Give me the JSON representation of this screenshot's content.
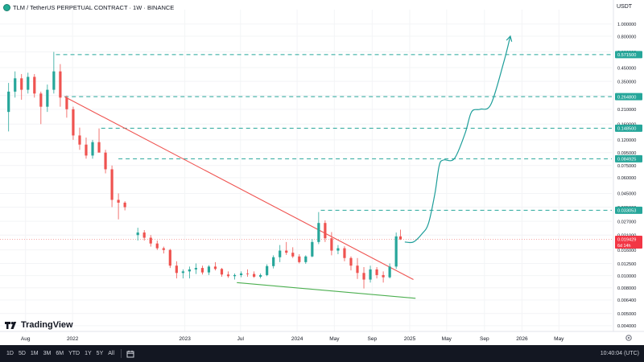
{
  "header": {
    "title": "TLM / TetherUS PERPETUAL CONTRACT · 1W · BINANCE"
  },
  "price_axis": {
    "currency": "USDT"
  },
  "watermark": {
    "text": "TradingView"
  },
  "bottom_bar": {
    "timeframes": [
      "1D",
      "5D",
      "1M",
      "3M",
      "6M",
      "YTD",
      "1Y",
      "5Y",
      "All"
    ],
    "clock": "10:40:04 (UTC)"
  },
  "colors": {
    "up": "#26a69a",
    "down": "#ef5350",
    "resistance": "#26a69a",
    "downtrend": "#ef5350",
    "support": "#4caf50",
    "projection": "#1e9e9a",
    "price_label": "#f23645"
  },
  "chart_data": {
    "type": "candlestick",
    "y_scale": "log",
    "ylim": [
      0.0036,
      1.3
    ],
    "y_ticks": [
      "1.000000",
      "0.800000",
      "0.600000",
      "0.450000",
      "0.350000",
      "0.270000",
      "0.210000",
      "0.160000",
      "0.120000",
      "0.095000",
      "0.075000",
      "0.060000",
      "0.045000",
      "0.035000",
      "0.027000",
      "0.021000",
      "0.016000",
      "0.012500",
      "0.010000",
      "0.008000",
      "0.006400",
      "0.005000",
      "0.004000"
    ],
    "x_ticks": [
      {
        "label": "Aug",
        "date": "2021-08-01"
      },
      {
        "label": "2022",
        "date": "2022-01-01"
      },
      {
        "label": "2023",
        "date": "2023-01-01"
      },
      {
        "label": "Jul",
        "date": "2023-07-01"
      },
      {
        "label": "2024",
        "date": "2024-01-01"
      },
      {
        "label": "May",
        "date": "2024-05-01"
      },
      {
        "label": "Sep",
        "date": "2024-09-01"
      },
      {
        "label": "2025",
        "date": "2025-01-01"
      },
      {
        "label": "May",
        "date": "2025-05-01"
      },
      {
        "label": "Sep",
        "date": "2025-09-01"
      },
      {
        "label": "2026",
        "date": "2026-01-01"
      },
      {
        "label": "May",
        "date": "2026-05-01"
      }
    ],
    "xlim": [
      "2021-05-10",
      "2026-10-20"
    ],
    "candles": [
      {
        "date": "2021-06-07",
        "o": 0.2,
        "h": 0.34,
        "l": 0.14,
        "c": 0.29
      },
      {
        "date": "2021-06-28",
        "o": 0.29,
        "h": 0.42,
        "l": 0.26,
        "c": 0.37
      },
      {
        "date": "2021-07-19",
        "o": 0.37,
        "h": 0.4,
        "l": 0.25,
        "c": 0.3
      },
      {
        "date": "2021-08-09",
        "o": 0.3,
        "h": 0.41,
        "l": 0.28,
        "c": 0.38
      },
      {
        "date": "2021-08-30",
        "o": 0.38,
        "h": 0.4,
        "l": 0.26,
        "c": 0.28
      },
      {
        "date": "2021-09-20",
        "o": 0.28,
        "h": 0.29,
        "l": 0.16,
        "c": 0.22
      },
      {
        "date": "2021-10-11",
        "o": 0.22,
        "h": 0.33,
        "l": 0.2,
        "c": 0.3
      },
      {
        "date": "2021-11-01",
        "o": 0.3,
        "h": 0.6,
        "l": 0.28,
        "c": 0.42
      },
      {
        "date": "2021-11-22",
        "o": 0.42,
        "h": 0.48,
        "l": 0.22,
        "c": 0.26
      },
      {
        "date": "2021-12-13",
        "o": 0.26,
        "h": 0.27,
        "l": 0.18,
        "c": 0.21
      },
      {
        "date": "2022-01-03",
        "o": 0.21,
        "h": 0.22,
        "l": 0.12,
        "c": 0.13
      },
      {
        "date": "2022-01-24",
        "o": 0.13,
        "h": 0.15,
        "l": 0.1,
        "c": 0.11
      },
      {
        "date": "2022-02-14",
        "o": 0.11,
        "h": 0.125,
        "l": 0.085,
        "c": 0.09
      },
      {
        "date": "2022-03-07",
        "o": 0.09,
        "h": 0.12,
        "l": 0.085,
        "c": 0.115
      },
      {
        "date": "2022-03-28",
        "o": 0.115,
        "h": 0.148,
        "l": 0.1,
        "c": 0.095
      },
      {
        "date": "2022-04-18",
        "o": 0.095,
        "h": 0.1,
        "l": 0.065,
        "c": 0.07
      },
      {
        "date": "2022-05-09",
        "o": 0.07,
        "h": 0.075,
        "l": 0.035,
        "c": 0.04
      },
      {
        "date": "2022-05-30",
        "o": 0.04,
        "h": 0.045,
        "l": 0.028,
        "c": 0.038
      },
      {
        "date": "2022-06-20",
        "o": 0.038,
        "h": 0.039,
        "l": 0.033,
        "c": 0.035
      },
      {
        "date": "2022-08-01",
        "o": 0.021,
        "h": 0.024,
        "l": 0.019,
        "c": 0.022
      },
      {
        "date": "2022-08-22",
        "o": 0.022,
        "h": 0.023,
        "l": 0.019,
        "c": 0.02
      },
      {
        "date": "2022-09-12",
        "o": 0.02,
        "h": 0.021,
        "l": 0.017,
        "c": 0.018
      },
      {
        "date": "2022-10-03",
        "o": 0.018,
        "h": 0.019,
        "l": 0.016,
        "c": 0.0165
      },
      {
        "date": "2022-10-24",
        "o": 0.0165,
        "h": 0.017,
        "l": 0.015,
        "c": 0.016
      },
      {
        "date": "2022-11-14",
        "o": 0.016,
        "h": 0.0163,
        "l": 0.0115,
        "c": 0.012
      },
      {
        "date": "2022-12-05",
        "o": 0.012,
        "h": 0.013,
        "l": 0.0095,
        "c": 0.0105
      },
      {
        "date": "2022-12-26",
        "o": 0.0105,
        "h": 0.0112,
        "l": 0.0095,
        "c": 0.0108
      },
      {
        "date": "2023-01-16",
        "o": 0.0108,
        "h": 0.0118,
        "l": 0.0095,
        "c": 0.0112
      },
      {
        "date": "2023-02-06",
        "o": 0.0112,
        "h": 0.0125,
        "l": 0.0103,
        "c": 0.0115
      },
      {
        "date": "2023-02-27",
        "o": 0.0115,
        "h": 0.012,
        "l": 0.0102,
        "c": 0.0106
      },
      {
        "date": "2023-03-20",
        "o": 0.0106,
        "h": 0.0121,
        "l": 0.0101,
        "c": 0.0118
      },
      {
        "date": "2023-04-10",
        "o": 0.0118,
        "h": 0.0128,
        "l": 0.011,
        "c": 0.0113
      },
      {
        "date": "2023-05-01",
        "o": 0.0113,
        "h": 0.0115,
        "l": 0.0098,
        "c": 0.0102
      },
      {
        "date": "2023-05-22",
        "o": 0.0102,
        "h": 0.0108,
        "l": 0.0096,
        "c": 0.0099
      },
      {
        "date": "2023-06-12",
        "o": 0.0099,
        "h": 0.0104,
        "l": 0.0093,
        "c": 0.0101
      },
      {
        "date": "2023-07-03",
        "o": 0.0101,
        "h": 0.0108,
        "l": 0.0097,
        "c": 0.0104
      },
      {
        "date": "2023-07-24",
        "o": 0.0104,
        "h": 0.0112,
        "l": 0.0098,
        "c": 0.0103
      },
      {
        "date": "2023-08-14",
        "o": 0.0103,
        "h": 0.0108,
        "l": 0.0096,
        "c": 0.0098
      },
      {
        "date": "2023-09-04",
        "o": 0.0098,
        "h": 0.0104,
        "l": 0.0095,
        "c": 0.0101
      },
      {
        "date": "2023-09-25",
        "o": 0.0101,
        "h": 0.0123,
        "l": 0.0099,
        "c": 0.0119
      },
      {
        "date": "2023-10-16",
        "o": 0.0119,
        "h": 0.0145,
        "l": 0.0114,
        "c": 0.014
      },
      {
        "date": "2023-11-06",
        "o": 0.014,
        "h": 0.0175,
        "l": 0.0128,
        "c": 0.0158
      },
      {
        "date": "2023-11-27",
        "o": 0.0158,
        "h": 0.0185,
        "l": 0.0146,
        "c": 0.0152
      },
      {
        "date": "2023-12-18",
        "o": 0.0152,
        "h": 0.0168,
        "l": 0.0138,
        "c": 0.0142
      },
      {
        "date": "2024-01-08",
        "o": 0.0142,
        "h": 0.0148,
        "l": 0.0125,
        "c": 0.0128
      },
      {
        "date": "2024-01-29",
        "o": 0.0128,
        "h": 0.0145,
        "l": 0.0124,
        "c": 0.0142
      },
      {
        "date": "2024-02-19",
        "o": 0.0142,
        "h": 0.0195,
        "l": 0.014,
        "c": 0.0185
      },
      {
        "date": "2024-03-11",
        "o": 0.0185,
        "h": 0.032,
        "l": 0.0178,
        "c": 0.0262
      },
      {
        "date": "2024-04-01",
        "o": 0.0262,
        "h": 0.0275,
        "l": 0.0185,
        "c": 0.0198
      },
      {
        "date": "2024-04-22",
        "o": 0.0198,
        "h": 0.0222,
        "l": 0.0145,
        "c": 0.0158
      },
      {
        "date": "2024-05-13",
        "o": 0.0158,
        "h": 0.0175,
        "l": 0.0148,
        "c": 0.0165
      },
      {
        "date": "2024-06-03",
        "o": 0.0165,
        "h": 0.0171,
        "l": 0.013,
        "c": 0.0138
      },
      {
        "date": "2024-06-24",
        "o": 0.0138,
        "h": 0.0142,
        "l": 0.011,
        "c": 0.012
      },
      {
        "date": "2024-07-15",
        "o": 0.012,
        "h": 0.0138,
        "l": 0.0094,
        "c": 0.0105
      },
      {
        "date": "2024-08-05",
        "o": 0.0105,
        "h": 0.0117,
        "l": 0.0079,
        "c": 0.0093
      },
      {
        "date": "2024-08-26",
        "o": 0.0093,
        "h": 0.012,
        "l": 0.0088,
        "c": 0.0112
      },
      {
        "date": "2024-09-16",
        "o": 0.0112,
        "h": 0.0117,
        "l": 0.0095,
        "c": 0.0101
      },
      {
        "date": "2024-10-07",
        "o": 0.0101,
        "h": 0.0108,
        "l": 0.0088,
        "c": 0.0097
      },
      {
        "date": "2024-10-28",
        "o": 0.0097,
        "h": 0.0125,
        "l": 0.0095,
        "c": 0.0118
      },
      {
        "date": "2024-11-18",
        "o": 0.0118,
        "h": 0.022,
        "l": 0.0113,
        "c": 0.0205
      },
      {
        "date": "2024-12-02",
        "o": 0.0205,
        "h": 0.0232,
        "l": 0.0192,
        "c": 0.0194
      }
    ],
    "levels": [
      {
        "value": 0.5715,
        "label": "0.571500",
        "from": "2021-11-08"
      },
      {
        "value": 0.2648,
        "label": "0.264800",
        "from": "2021-12-06"
      },
      {
        "value": 0.1485,
        "label": "0.148500",
        "from": "2022-04-04"
      },
      {
        "value": 0.084925,
        "label": "0.084925",
        "from": "2022-05-30"
      },
      {
        "value": 0.033053,
        "label": "0.033053",
        "from": "2024-03-18"
      }
    ],
    "current_price": {
      "value": 0.019429,
      "label": "0.019429",
      "countdown": "6d 14h"
    },
    "trendlines": [
      {
        "name": "downtrend",
        "from": {
          "date": "2021-12-06",
          "value": 0.264
        },
        "to": {
          "date": "2025-01-13",
          "value": 0.0093
        }
      },
      {
        "name": "support",
        "from": {
          "date": "2023-06-19",
          "value": 0.0088
        },
        "to": {
          "date": "2025-01-20",
          "value": 0.0066
        }
      }
    ],
    "projection": [
      {
        "date": "2024-12-16",
        "value": 0.0185
      },
      {
        "date": "2025-01-13",
        "value": 0.0185
      },
      {
        "date": "2025-02-10",
        "value": 0.0215
      },
      {
        "date": "2025-03-03",
        "value": 0.026
      },
      {
        "date": "2025-03-24",
        "value": 0.045
      },
      {
        "date": "2025-04-07",
        "value": 0.075
      },
      {
        "date": "2025-04-21",
        "value": 0.083
      },
      {
        "date": "2025-05-26",
        "value": 0.085
      },
      {
        "date": "2025-06-30",
        "value": 0.135
      },
      {
        "date": "2025-07-21",
        "value": 0.2
      },
      {
        "date": "2025-08-18",
        "value": 0.21
      },
      {
        "date": "2025-09-22",
        "value": 0.23
      },
      {
        "date": "2025-11-03",
        "value": 0.5
      },
      {
        "date": "2025-11-24",
        "value": 0.8
      }
    ]
  }
}
